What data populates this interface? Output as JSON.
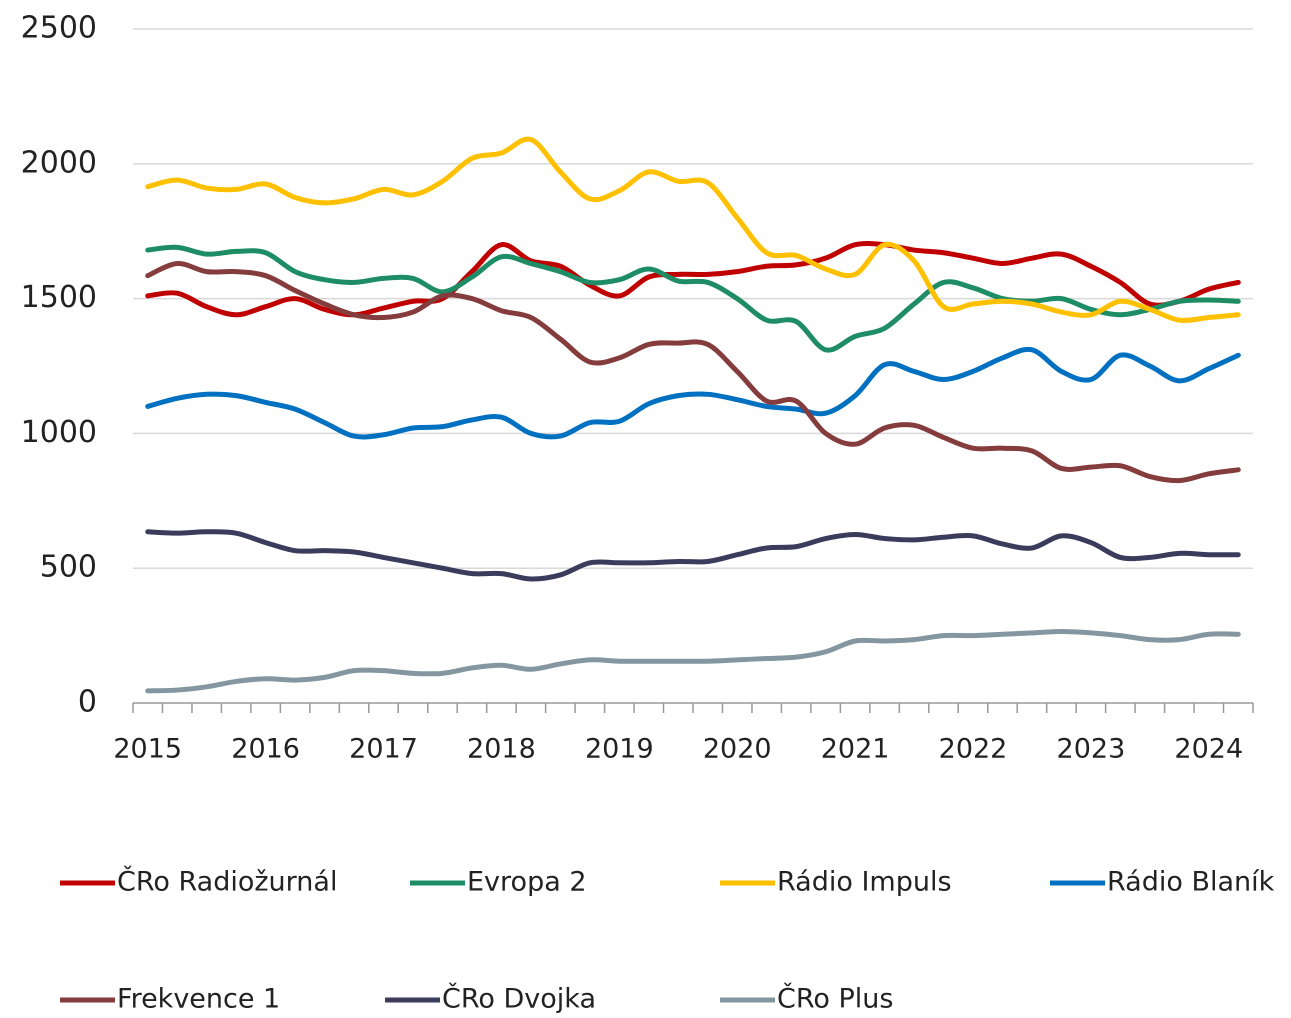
{
  "chart_data": {
    "type": "line",
    "categories": [
      "2015",
      null,
      null,
      null,
      "2016",
      null,
      null,
      null,
      "2017",
      null,
      null,
      null,
      "2018",
      null,
      null,
      null,
      "2019",
      null,
      null,
      null,
      "2020",
      null,
      null,
      null,
      "2021",
      null,
      null,
      null,
      "2022",
      null,
      null,
      null,
      "2023",
      null,
      null,
      null,
      "2024",
      null
    ],
    "ylim": [
      0,
      2500
    ],
    "yticks": [
      0,
      500,
      1000,
      1500,
      2000,
      2500
    ],
    "grid": true,
    "series": [
      {
        "name": "ČRo Radiožurnál",
        "color": "#c00000",
        "values": [
          1510,
          1520,
          1470,
          1440,
          1470,
          1500,
          1460,
          1440,
          1465,
          1490,
          1500,
          1600,
          1700,
          1640,
          1620,
          1550,
          1510,
          1580,
          1590,
          1590,
          1600,
          1620,
          1625,
          1650,
          1700,
          1700,
          1680,
          1670,
          1650,
          1630,
          1650,
          1665,
          1620,
          1560,
          1480,
          1490,
          1535,
          1560
        ]
      },
      {
        "name": "Evropa 2",
        "color": "#1e8c64",
        "values": [
          1680,
          1690,
          1665,
          1675,
          1670,
          1600,
          1570,
          1560,
          1575,
          1575,
          1525,
          1580,
          1655,
          1630,
          1600,
          1560,
          1570,
          1610,
          1565,
          1560,
          1500,
          1420,
          1415,
          1310,
          1360,
          1390,
          1480,
          1560,
          1540,
          1500,
          1490,
          1500,
          1460,
          1440,
          1460,
          1490,
          1495,
          1490
        ]
      },
      {
        "name": "Rádio Impuls",
        "color": "#ffc000",
        "values": [
          1915,
          1940,
          1910,
          1905,
          1925,
          1875,
          1855,
          1870,
          1905,
          1885,
          1935,
          2020,
          2040,
          2090,
          1970,
          1870,
          1900,
          1970,
          1935,
          1930,
          1800,
          1670,
          1660,
          1610,
          1590,
          1700,
          1640,
          1470,
          1480,
          1490,
          1480,
          1450,
          1440,
          1490,
          1460,
          1420,
          1430,
          1440
        ]
      },
      {
        "name": "Rádio Blaník",
        "color": "#0070c0",
        "values": [
          1100,
          1130,
          1145,
          1140,
          1115,
          1090,
          1040,
          990,
          995,
          1020,
          1025,
          1050,
          1060,
          1000,
          990,
          1040,
          1045,
          1110,
          1140,
          1145,
          1125,
          1100,
          1090,
          1075,
          1140,
          1255,
          1230,
          1200,
          1230,
          1280,
          1310,
          1230,
          1200,
          1290,
          1250,
          1195,
          1240,
          1290
        ]
      },
      {
        "name": "Frekvence 1",
        "color": "#843c3c",
        "values": [
          1585,
          1630,
          1600,
          1600,
          1585,
          1530,
          1480,
          1440,
          1430,
          1450,
          1510,
          1500,
          1455,
          1430,
          1350,
          1265,
          1280,
          1330,
          1335,
          1330,
          1230,
          1120,
          1120,
          1000,
          960,
          1020,
          1030,
          985,
          945,
          945,
          935,
          870,
          875,
          880,
          840,
          825,
          850,
          865
        ]
      },
      {
        "name": "ČRo Dvojka",
        "color": "#3b3b5c",
        "values": [
          635,
          630,
          635,
          630,
          595,
          565,
          565,
          560,
          540,
          520,
          500,
          480,
          480,
          460,
          475,
          520,
          520,
          520,
          525,
          525,
          550,
          575,
          580,
          610,
          625,
          610,
          605,
          615,
          620,
          590,
          575,
          620,
          595,
          540,
          540,
          555,
          550,
          550
        ]
      },
      {
        "name": "ČRo Plus",
        "color": "#8497a0",
        "values": [
          45,
          48,
          60,
          80,
          90,
          85,
          95,
          120,
          120,
          110,
          110,
          130,
          140,
          125,
          145,
          160,
          155,
          155,
          155,
          155,
          160,
          165,
          170,
          190,
          230,
          230,
          235,
          250,
          250,
          255,
          260,
          265,
          260,
          250,
          235,
          235,
          255,
          255
        ]
      }
    ]
  }
}
